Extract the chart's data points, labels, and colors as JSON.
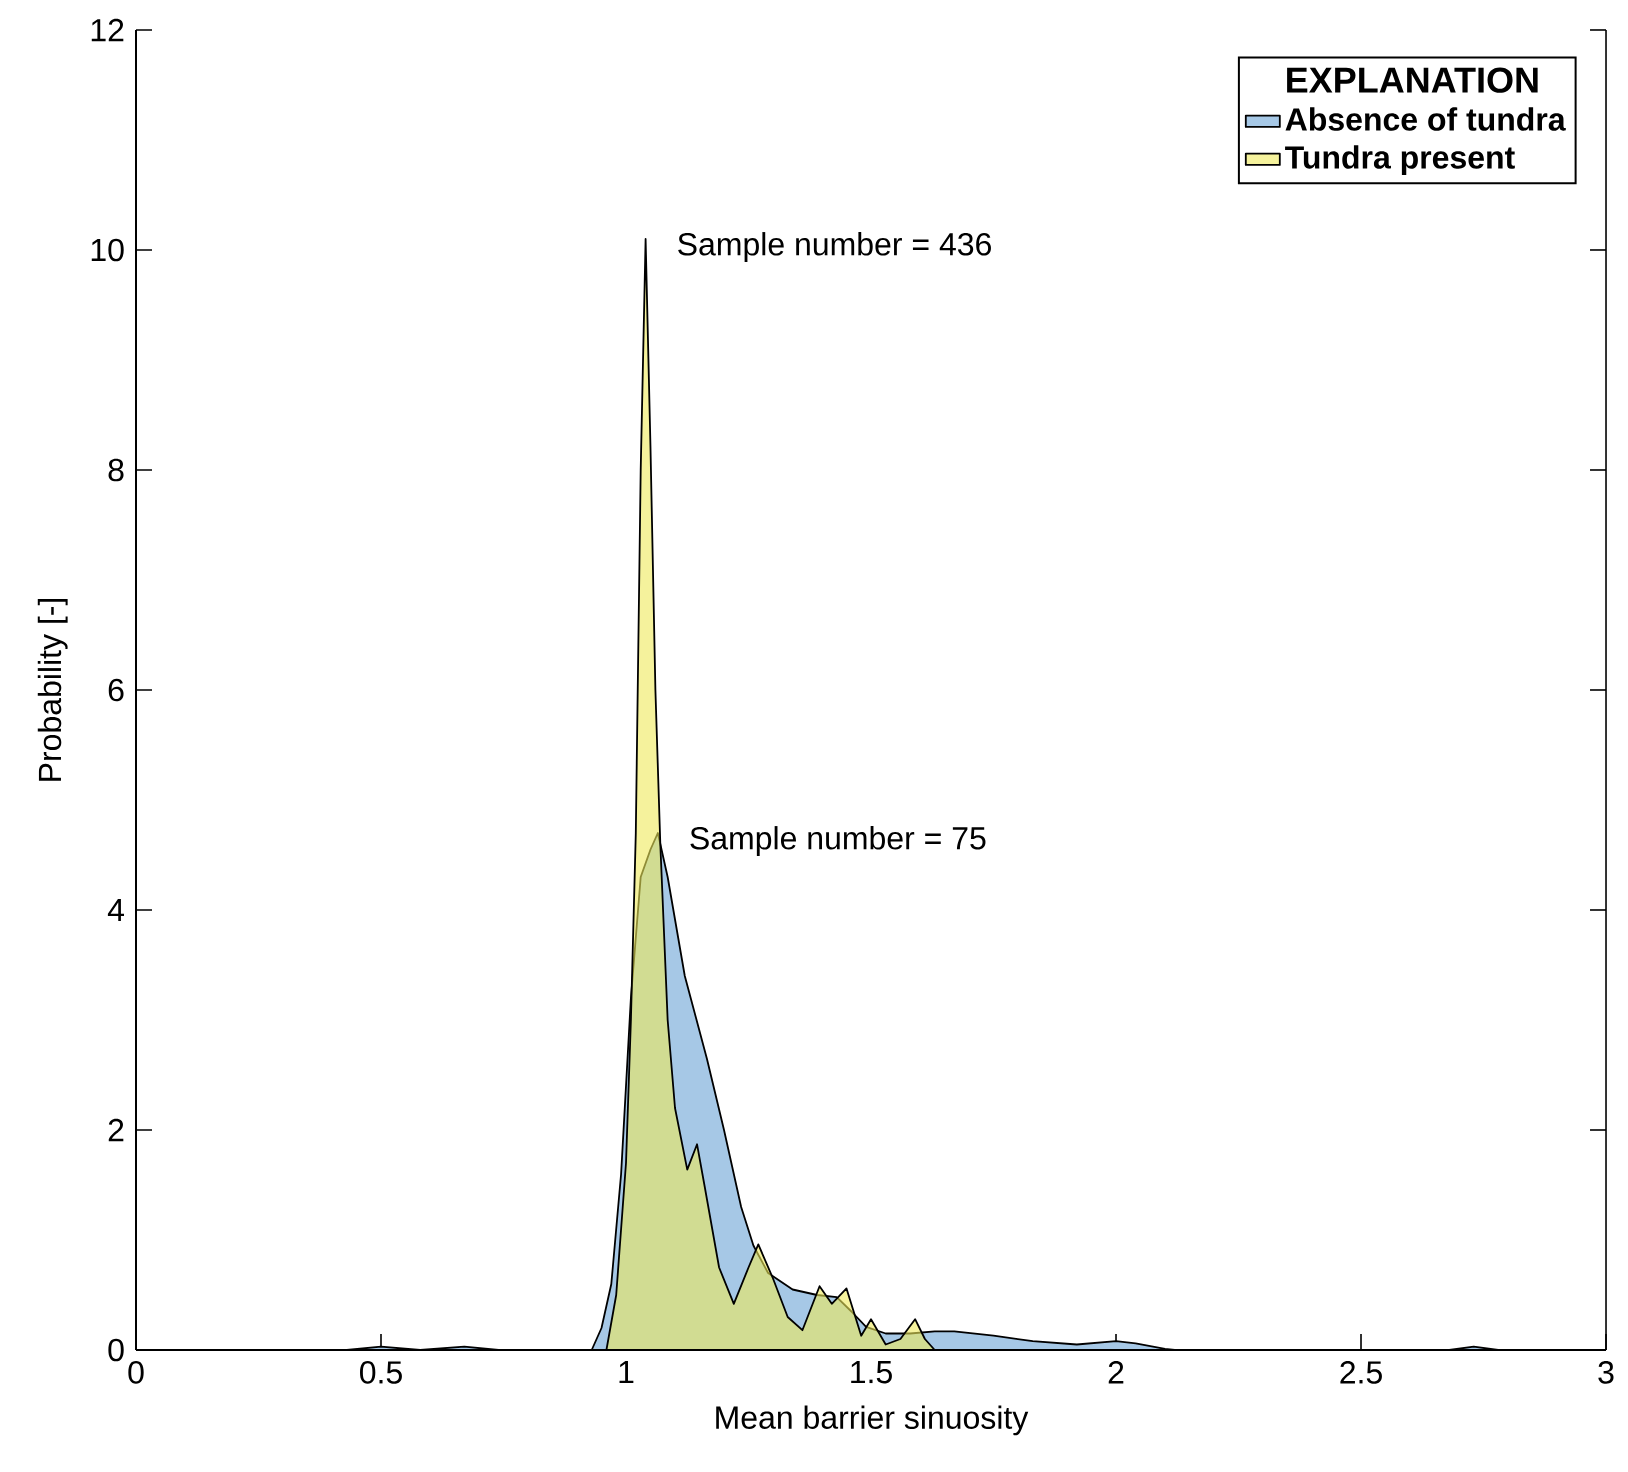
{
  "chart_data": {
    "type": "area",
    "xlabel": "Mean barrier sinuosity",
    "ylabel": "Probability [-]",
    "xlim": [
      0,
      3
    ],
    "xticks": [
      0,
      0.5,
      1,
      1.5,
      2,
      2.5,
      3
    ],
    "ylim": [
      0,
      12
    ],
    "yticks": [
      0,
      2,
      4,
      6,
      8,
      10,
      12
    ],
    "legend": "top right",
    "legend_title": "EXPLANATION",
    "series": [
      {
        "name": "Absence of tundra",
        "color": "#a6c8e6",
        "x": [
          0.43,
          0.5,
          0.58,
          0.67,
          0.74,
          0.93,
          0.95,
          0.97,
          0.99,
          1.01,
          1.03,
          1.05,
          1.065,
          1.085,
          1.12,
          1.165,
          1.2,
          1.235,
          1.26,
          1.29,
          1.34,
          1.39,
          1.43,
          1.46,
          1.49,
          1.53,
          1.58,
          1.63,
          1.67,
          1.75,
          1.83,
          1.92,
          2.0,
          2.04,
          2.1,
          2.12,
          2.68,
          2.73,
          2.78,
          2.82
        ],
        "values": [
          0,
          0.03,
          0,
          0.03,
          0,
          0,
          0.2,
          0.6,
          1.6,
          3.2,
          4.3,
          4.55,
          4.7,
          4.3,
          3.4,
          2.65,
          2.0,
          1.3,
          0.95,
          0.7,
          0.55,
          0.5,
          0.48,
          0.35,
          0.21,
          0.15,
          0.15,
          0.17,
          0.17,
          0.13,
          0.08,
          0.05,
          0.08,
          0.06,
          0.01,
          0,
          0,
          0.03,
          0,
          0
        ]
      },
      {
        "name": "Tundra present",
        "color": "#eeea5a",
        "x": [
          0.96,
          0.98,
          1.0,
          1.01,
          1.02,
          1.03,
          1.04,
          1.05,
          1.06,
          1.07,
          1.085,
          1.1,
          1.125,
          1.145,
          1.16,
          1.19,
          1.22,
          1.25,
          1.27,
          1.3,
          1.33,
          1.36,
          1.395,
          1.42,
          1.45,
          1.48,
          1.5,
          1.53,
          1.56,
          1.59,
          1.61,
          1.63
        ],
        "values": [
          0,
          0.5,
          1.7,
          3.0,
          4.7,
          8.0,
          10.1,
          8.2,
          6.0,
          4.6,
          3.0,
          2.2,
          1.64,
          1.87,
          1.5,
          0.75,
          0.42,
          0.75,
          0.96,
          0.65,
          0.3,
          0.18,
          0.58,
          0.42,
          0.56,
          0.13,
          0.28,
          0.05,
          0.1,
          0.28,
          0.1,
          0
        ]
      }
    ],
    "annotations": [
      {
        "text": "Sample number = 436",
        "x": 1.04,
        "y": 10.1
      },
      {
        "text": "Sample number = 75",
        "x": 1.065,
        "y": 4.7
      }
    ]
  }
}
